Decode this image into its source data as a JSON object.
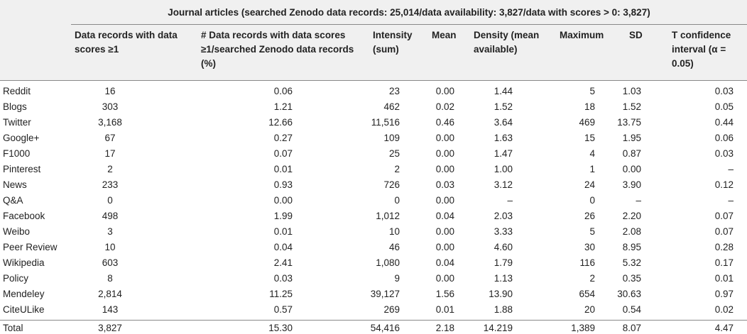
{
  "table": {
    "title": "Journal articles (searched Zenodo data records: 25,014/data availability: 3,827/data with scores > 0: 3,827)",
    "columns": [
      "Data records with data scores ≥1",
      "# Data records with data scores ≥1/searched Zenodo data records (%)",
      "Intensity (sum)",
      "Mean",
      "Density (mean available)",
      "Maximum",
      "SD",
      "T confidence interval (α = 0.05)"
    ],
    "rows": [
      [
        "Reddit",
        "16",
        "0.06",
        "23",
        "0.00",
        "1.44",
        "5",
        "1.03",
        "0.03"
      ],
      [
        "Blogs",
        "303",
        "1.21",
        "462",
        "0.02",
        "1.52",
        "18",
        "1.52",
        "0.05"
      ],
      [
        "Twitter",
        "3,168",
        "12.66",
        "11,516",
        "0.46",
        "3.64",
        "469",
        "13.75",
        "0.44"
      ],
      [
        "Google+",
        "67",
        "0.27",
        "109",
        "0.00",
        "1.63",
        "15",
        "1.95",
        "0.06"
      ],
      [
        "F1000",
        "17",
        "0.07",
        "25",
        "0.00",
        "1.47",
        "4",
        "0.87",
        "0.03"
      ],
      [
        "Pinterest",
        "2",
        "0.01",
        "2",
        "0.00",
        "1.00",
        "1",
        "0.00",
        "–"
      ],
      [
        "News",
        "233",
        "0.93",
        "726",
        "0.03",
        "3.12",
        "24",
        "3.90",
        "0.12"
      ],
      [
        "Q&A",
        "0",
        "0.00",
        "0",
        "0.00",
        "–",
        "0",
        "–",
        "–"
      ],
      [
        "Facebook",
        "498",
        "1.99",
        "1,012",
        "0.04",
        "2.03",
        "26",
        "2.20",
        "0.07"
      ],
      [
        "Weibo",
        "3",
        "0.01",
        "10",
        "0.00",
        "3.33",
        "5",
        "2.08",
        "0.07"
      ],
      [
        "Peer Review",
        "10",
        "0.04",
        "46",
        "0.00",
        "4.60",
        "30",
        "8.95",
        "0.28"
      ],
      [
        "Wikipedia",
        "603",
        "2.41",
        "1,080",
        "0.04",
        "1.79",
        "116",
        "5.32",
        "0.17"
      ],
      [
        "Policy",
        "8",
        "0.03",
        "9",
        "0.00",
        "1.13",
        "2",
        "0.35",
        "0.01"
      ],
      [
        "Mendeley",
        "2,814",
        "11.25",
        "39,127",
        "1.56",
        "13.90",
        "654",
        "30.63",
        "0.97"
      ],
      [
        "CiteULike",
        "143",
        "0.57",
        "269",
        "0.01",
        "1.88",
        "20",
        "0.54",
        "0.02"
      ]
    ],
    "total": [
      "Total",
      "3,827",
      "15.30",
      "54,416",
      "2.18",
      "14.219",
      "1,389",
      "8.07",
      "4.47"
    ]
  }
}
